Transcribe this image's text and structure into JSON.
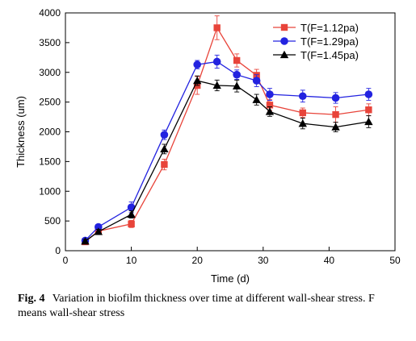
{
  "chart_data": {
    "type": "line",
    "xlabel": "Time (d)",
    "ylabel": "Thickness (um)",
    "xlim": [
      0,
      50
    ],
    "ylim": [
      0,
      4000
    ],
    "xticks": [
      "0",
      "10",
      "20",
      "30",
      "40",
      "50"
    ],
    "yticks": [
      "0",
      "500",
      "1000",
      "1500",
      "2000",
      "2500",
      "3000",
      "3500",
      "4000"
    ],
    "legend_position": "top-right",
    "grid": false,
    "series": [
      {
        "name": "T(F=1.12pa)",
        "color": "#e8443a",
        "marker": "square",
        "x": [
          3,
          5,
          10,
          15,
          20,
          23,
          26,
          29,
          31,
          36,
          41,
          46
        ],
        "y": [
          150,
          330,
          450,
          1450,
          2780,
          3750,
          3200,
          2950,
          2450,
          2320,
          2290,
          2370
        ],
        "err": [
          30,
          40,
          60,
          90,
          150,
          200,
          110,
          100,
          90,
          80,
          130,
          100
        ]
      },
      {
        "name": "T(F=1.29pa)",
        "color": "#2323e0",
        "marker": "circle",
        "x": [
          3,
          5,
          10,
          15,
          20,
          23,
          26,
          29,
          31,
          36,
          41,
          46
        ],
        "y": [
          170,
          400,
          730,
          1950,
          3130,
          3180,
          2960,
          2860,
          2630,
          2600,
          2570,
          2630
        ],
        "err": [
          30,
          40,
          90,
          80,
          70,
          110,
          80,
          100,
          100,
          100,
          90,
          100
        ]
      },
      {
        "name": "T(F=1.45pa)",
        "color": "#000000",
        "marker": "triangle",
        "x": [
          3,
          5,
          10,
          15,
          20,
          23,
          26,
          29,
          31,
          36,
          41,
          46
        ],
        "y": [
          160,
          320,
          610,
          1710,
          2860,
          2780,
          2770,
          2540,
          2340,
          2140,
          2080,
          2170
        ],
        "err": [
          30,
          40,
          60,
          80,
          80,
          90,
          100,
          90,
          80,
          90,
          80,
          100
        ]
      }
    ]
  },
  "caption": {
    "label": "Fig. 4",
    "text": "Variation in biofilm thickness over time at different wall-shear stress. F means wall-shear stress"
  }
}
